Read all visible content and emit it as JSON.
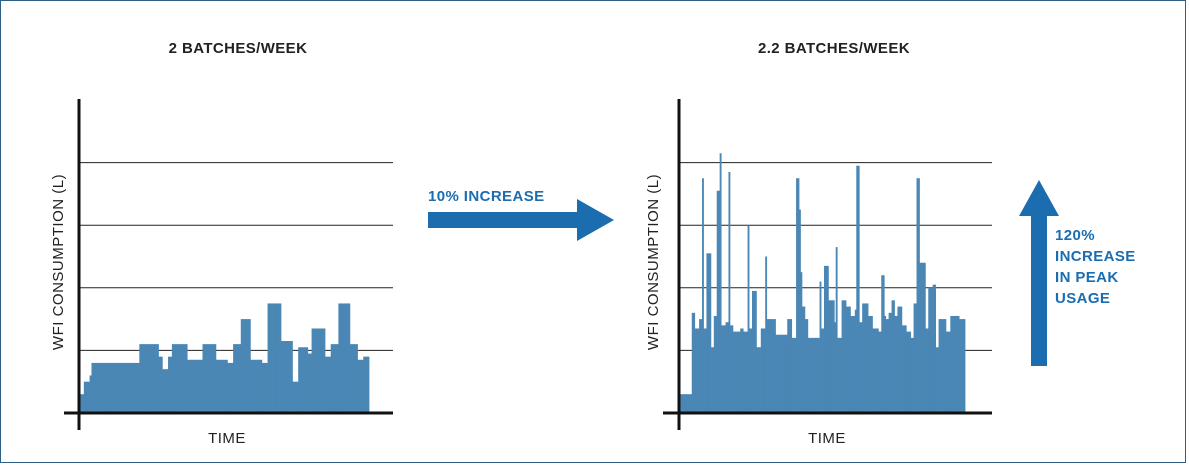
{
  "colors": {
    "bar": "#4a87b5",
    "arrow": "#1b6db0",
    "axis": "#111111",
    "grid": "#222222",
    "frame": "#2f5f86"
  },
  "callouts": {
    "middle": "10% INCREASE",
    "right_lines": [
      "120%",
      "INCREASE",
      "IN PEAK",
      "USAGE"
    ]
  },
  "icons": {
    "middle_arrow": "right-arrow-icon",
    "right_arrow": "up-arrow-icon"
  },
  "chart_data": [
    {
      "type": "bar",
      "title": "2 BATCHES/WEEK",
      "xlabel": "TIME",
      "ylabel": "WFI CONSUMPTION (L)",
      "ylim": [
        0,
        5
      ],
      "grid": true,
      "gridlines": [
        1,
        2,
        3,
        4
      ],
      "values": [
        0.3,
        0.3,
        0.5,
        0.5,
        0.5,
        0.6,
        0.8,
        0.8,
        0.8,
        0.8,
        0.8,
        0.8,
        0.8,
        0.8,
        0.8,
        0.8,
        0.8,
        0.8,
        0.8,
        0.8,
        0.8,
        0.8,
        0.8,
        0.8,
        0.8,
        0.8,
        0.8,
        0.8,
        0.8,
        0.8,
        0.8,
        1.1,
        1.1,
        1.1,
        1.1,
        1.1,
        1.1,
        1.1,
        1.1,
        1.1,
        1.1,
        0.9,
        0.9,
        0.7,
        0.7,
        0.7,
        0.9,
        0.9,
        1.1,
        1.1,
        1.1,
        1.1,
        1.1,
        1.1,
        1.1,
        1.1,
        0.85,
        0.85,
        0.85,
        0.85,
        0.85,
        0.85,
        0.85,
        0.85,
        1.1,
        1.1,
        1.1,
        1.1,
        1.1,
        1.1,
        1.1,
        0.85,
        0.85,
        0.85,
        0.85,
        0.85,
        0.85,
        0.8,
        0.8,
        0.8,
        1.1,
        1.1,
        1.1,
        1.1,
        1.5,
        1.5,
        1.5,
        1.5,
        1.5,
        0.85,
        0.85,
        0.85,
        0.85,
        0.85,
        0.85,
        0.8,
        0.8,
        0.8,
        1.75,
        1.75,
        1.75,
        1.75,
        1.75,
        1.75,
        1.75,
        1.15,
        1.15,
        1.15,
        1.15,
        1.15,
        1.15,
        0.5,
        0.5,
        0.5,
        1.05,
        1.05,
        1.05,
        1.05,
        1.05,
        0.95,
        0.95,
        1.35,
        1.35,
        1.35,
        1.35,
        1.35,
        1.35,
        1.35,
        0.9,
        0.9,
        0.9,
        1.1,
        1.1,
        1.1,
        1.1,
        1.75,
        1.75,
        1.75,
        1.75,
        1.75,
        1.75,
        1.1,
        1.1,
        1.1,
        1.1,
        0.85,
        0.85,
        0.85,
        0.9,
        0.9,
        0.9
      ]
    },
    {
      "type": "bar",
      "title": "2.2 BATCHES/WEEK",
      "xlabel": "TIME",
      "ylabel": "WFI CONSUMPTION (L)",
      "ylim": [
        0,
        5
      ],
      "grid": true,
      "gridlines": [
        1,
        2,
        3,
        4
      ],
      "values": [
        0.3,
        0.3,
        0.3,
        0.3,
        0.3,
        0.3,
        0.3,
        0.3,
        1.6,
        1.6,
        1.35,
        1.35,
        1.35,
        1.5,
        1.5,
        3.75,
        1.35,
        1.35,
        2.55,
        2.55,
        2.55,
        1.05,
        1.05,
        1.55,
        1.55,
        3.55,
        3.55,
        4.15,
        1.4,
        1.4,
        1.4,
        1.45,
        1.45,
        3.85,
        1.4,
        1.4,
        1.3,
        1.3,
        1.3,
        1.3,
        1.3,
        1.35,
        1.35,
        1.3,
        1.3,
        1.3,
        3.0,
        1.35,
        1.35,
        1.95,
        1.95,
        1.95,
        1.05,
        1.05,
        1.05,
        1.35,
        1.35,
        1.35,
        2.5,
        1.5,
        1.5,
        1.5,
        1.5,
        1.5,
        1.5,
        1.25,
        1.25,
        1.25,
        1.25,
        1.25,
        1.25,
        1.25,
        1.25,
        1.5,
        1.5,
        1.5,
        1.2,
        1.2,
        1.2,
        3.75,
        3.75,
        3.25,
        2.25,
        1.7,
        1.7,
        1.5,
        1.5,
        1.2,
        1.2,
        1.2,
        1.2,
        1.2,
        1.2,
        1.2,
        1.2,
        2.1,
        1.35,
        1.35,
        2.35,
        2.35,
        2.35,
        1.8,
        1.8,
        1.8,
        1.8,
        1.45,
        2.65,
        1.2,
        1.2,
        1.2,
        1.8,
        1.8,
        1.8,
        1.7,
        1.7,
        1.7,
        1.55,
        1.55,
        1.55,
        1.65,
        3.95,
        3.95,
        1.45,
        1.45,
        1.75,
        1.75,
        1.75,
        1.75,
        1.55,
        1.55,
        1.55,
        1.35,
        1.35,
        1.35,
        1.35,
        1.3,
        1.3,
        2.2,
        2.2,
        1.55,
        1.5,
        1.5,
        1.6,
        1.6,
        1.8,
        1.8,
        1.55,
        1.55,
        1.7,
        1.7,
        1.7,
        1.4,
        1.4,
        1.4,
        1.3,
        1.3,
        1.3,
        1.2,
        1.2,
        1.75,
        1.75,
        3.75,
        3.75,
        2.4,
        2.4,
        2.4,
        2.4,
        1.35,
        1.35,
        2.0,
        2.0,
        2.0,
        2.05,
        2.05,
        1.05,
        1.05,
        1.5,
        1.5,
        1.5,
        1.5,
        1.5,
        1.3,
        1.3,
        1.3,
        1.55,
        1.55,
        1.55,
        1.55,
        1.55,
        1.55,
        1.5,
        1.5,
        1.5,
        1.5
      ]
    }
  ]
}
